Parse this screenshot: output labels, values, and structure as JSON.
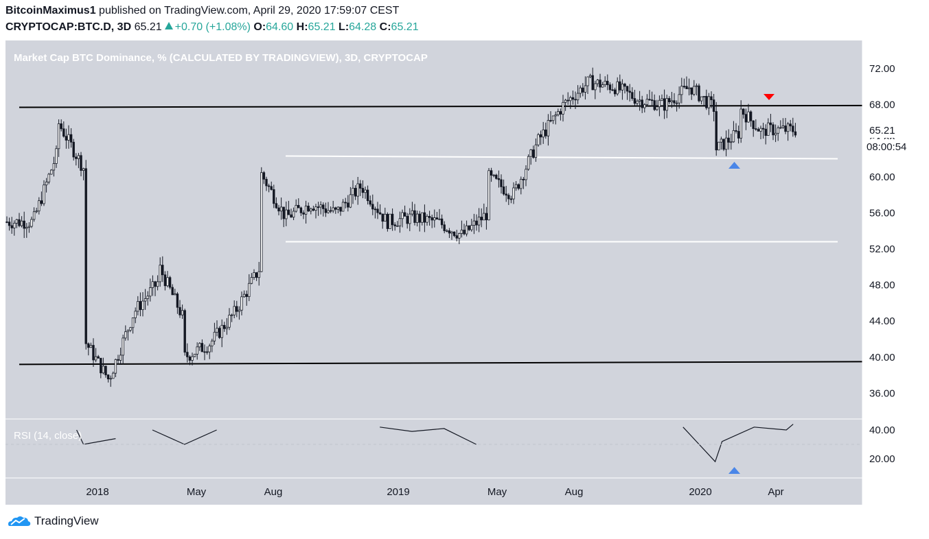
{
  "header": {
    "author": "BitcoinMaximus1",
    "published_text": "published on TradingView.com, April 29, 2020 17:59:07 CEST",
    "symbol": "CRYPTOCAP:BTC.D, 3D",
    "last": "65.21",
    "change": "+0.70 (+1.08%)",
    "o_label": "O:",
    "o": "64.60",
    "h_label": "H:",
    "h": "65.21",
    "l_label": "L:",
    "l": "64.28",
    "c_label": "C:",
    "c": "65.21"
  },
  "footer": {
    "brand": "TradingView"
  },
  "colors": {
    "background": "#d1d4dc",
    "candle": "#131722",
    "support_resistance": "#000000",
    "range_lines": "#ffffff",
    "sell_marker": "#ff0000",
    "buy_marker": "#4a86e8"
  },
  "chart_data": [
    {
      "type": "candlestick",
      "title": "Market Cap BTC Dominance, % (CALCULATED BY TRADINGVIEW), 3D, CRYPTOCAP",
      "ylabel": "",
      "ylim": [
        33.2,
        75.0
      ],
      "y_ticks": [
        "72.00",
        "68.00",
        "64.00",
        "60.00",
        "56.00",
        "52.00",
        "48.00",
        "44.00",
        "40.00",
        "36.00"
      ],
      "x_ticks": [
        "2018",
        "May",
        "Aug",
        "2019",
        "May",
        "Aug",
        "2020",
        "Apr"
      ],
      "last_price_label": "65.21",
      "countdown_label": "08:00:54",
      "series": [
        {
          "name": "BTC.D",
          "x": [
            "2017-11",
            "2017-12",
            "2017-12",
            "2018-01",
            "2018-01",
            "2018-02",
            "2018-03",
            "2018-04",
            "2018-04",
            "2018-05",
            "2018-05",
            "2018-06",
            "2018-07",
            "2018-08",
            "2018-08",
            "2018-09",
            "2018-10",
            "2018-11",
            "2018-12",
            "2019-01",
            "2019-02",
            "2019-03",
            "2019-04",
            "2019-05",
            "2019-05",
            "2019-06",
            "2019-07",
            "2019-08",
            "2019-09",
            "2019-10",
            "2019-11",
            "2019-12",
            "2020-01",
            "2020-02",
            "2020-02",
            "2020-03",
            "2020-03",
            "2020-04",
            "2020-04"
          ],
          "values": [
            55.0,
            63.0,
            66.0,
            61.0,
            42.0,
            37.5,
            45.0,
            48.5,
            50.0,
            44.0,
            40.0,
            41.5,
            45.0,
            50.0,
            60.5,
            55.5,
            57.0,
            56.0,
            59.0,
            55.0,
            55.5,
            55.0,
            53.5,
            56.0,
            60.0,
            58.0,
            64.0,
            68.0,
            70.5,
            70.0,
            68.5,
            68.0,
            70.0,
            67.5,
            63.0,
            65.0,
            67.5,
            64.5,
            65.21
          ]
        }
      ],
      "lines": [
        {
          "name": "resistance",
          "from": [
            "2017-11",
            67.7
          ],
          "to": [
            "2020-06",
            67.9
          ]
        },
        {
          "name": "support",
          "from": [
            "2017-11",
            39.2
          ],
          "to": [
            "2020-06",
            39.5
          ]
        },
        {
          "name": "range-top",
          "from": [
            "2018-09",
            62.3
          ],
          "to": [
            "2020-06",
            62.0
          ]
        },
        {
          "name": "range-bottom",
          "from": [
            "2018-09",
            52.8
          ],
          "to": [
            "2020-06",
            52.8
          ]
        }
      ]
    },
    {
      "type": "line",
      "title": "RSI (14, close)",
      "ylim": [
        10,
        50
      ],
      "y_ticks": [
        "40.00",
        "20.00"
      ],
      "series": [
        {
          "name": "RSI",
          "x": [
            "2018-01",
            "2018-01",
            "2018-02",
            "2018-04",
            "2018-05",
            "2018-06",
            "2019-01",
            "2019-02",
            "2019-03",
            "2019-04",
            "2020-01",
            "2020-02",
            "2020-02",
            "2020-03",
            "2020-04",
            "2020-04"
          ],
          "values": [
            40,
            30,
            34,
            40,
            30,
            40,
            42,
            39,
            41,
            30,
            42,
            18,
            32,
            42,
            40,
            44
          ]
        }
      ]
    }
  ]
}
